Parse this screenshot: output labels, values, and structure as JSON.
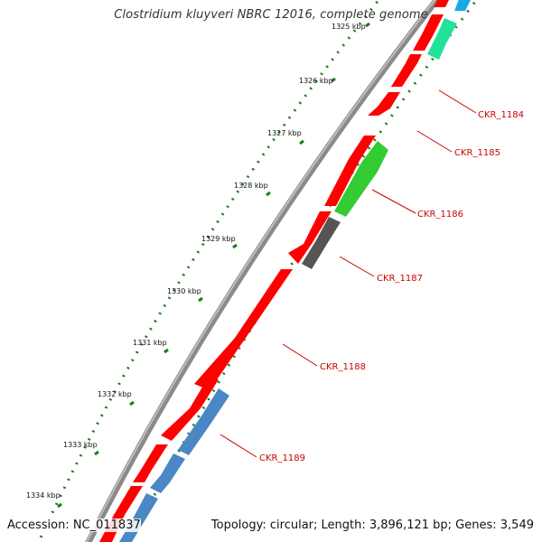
{
  "header": {
    "title": "Clostridium kluyveri NBRC 12016, complete genome"
  },
  "footer": {
    "accession": "Accession: NC_011837",
    "summary": "Topology: circular; Length: 3,896,121 bp; Genes: 3,549"
  },
  "ruler": {
    "labels": [
      {
        "text": "1325 kbp"
      },
      {
        "text": "1326 kbp"
      },
      {
        "text": "1327 kbp"
      },
      {
        "text": "1328 kbp"
      },
      {
        "text": "1329 kbp"
      },
      {
        "text": "1330 kbp"
      },
      {
        "text": "1331 kbp"
      },
      {
        "text": "1332 kbp"
      },
      {
        "text": "1333 kbp"
      },
      {
        "text": "1334 kbp"
      }
    ]
  },
  "genes": [
    {
      "label": "CKR_1184"
    },
    {
      "label": "CKR_1185"
    },
    {
      "label": "CKR_1186"
    },
    {
      "label": "CKR_1187"
    },
    {
      "label": "CKR_1188"
    },
    {
      "label": "CKR_1189"
    }
  ],
  "colors": {
    "cds": "#ff0000",
    "backbone": "#777777",
    "gene_label": "#cc0000",
    "tick": "#1a7f1a",
    "green_feature": "#33cc33",
    "teal_feature": "#22e29a",
    "gray_feature": "#555555",
    "blue_feature": "#4a87c4",
    "cyan_feature": "#1aa7e8"
  }
}
